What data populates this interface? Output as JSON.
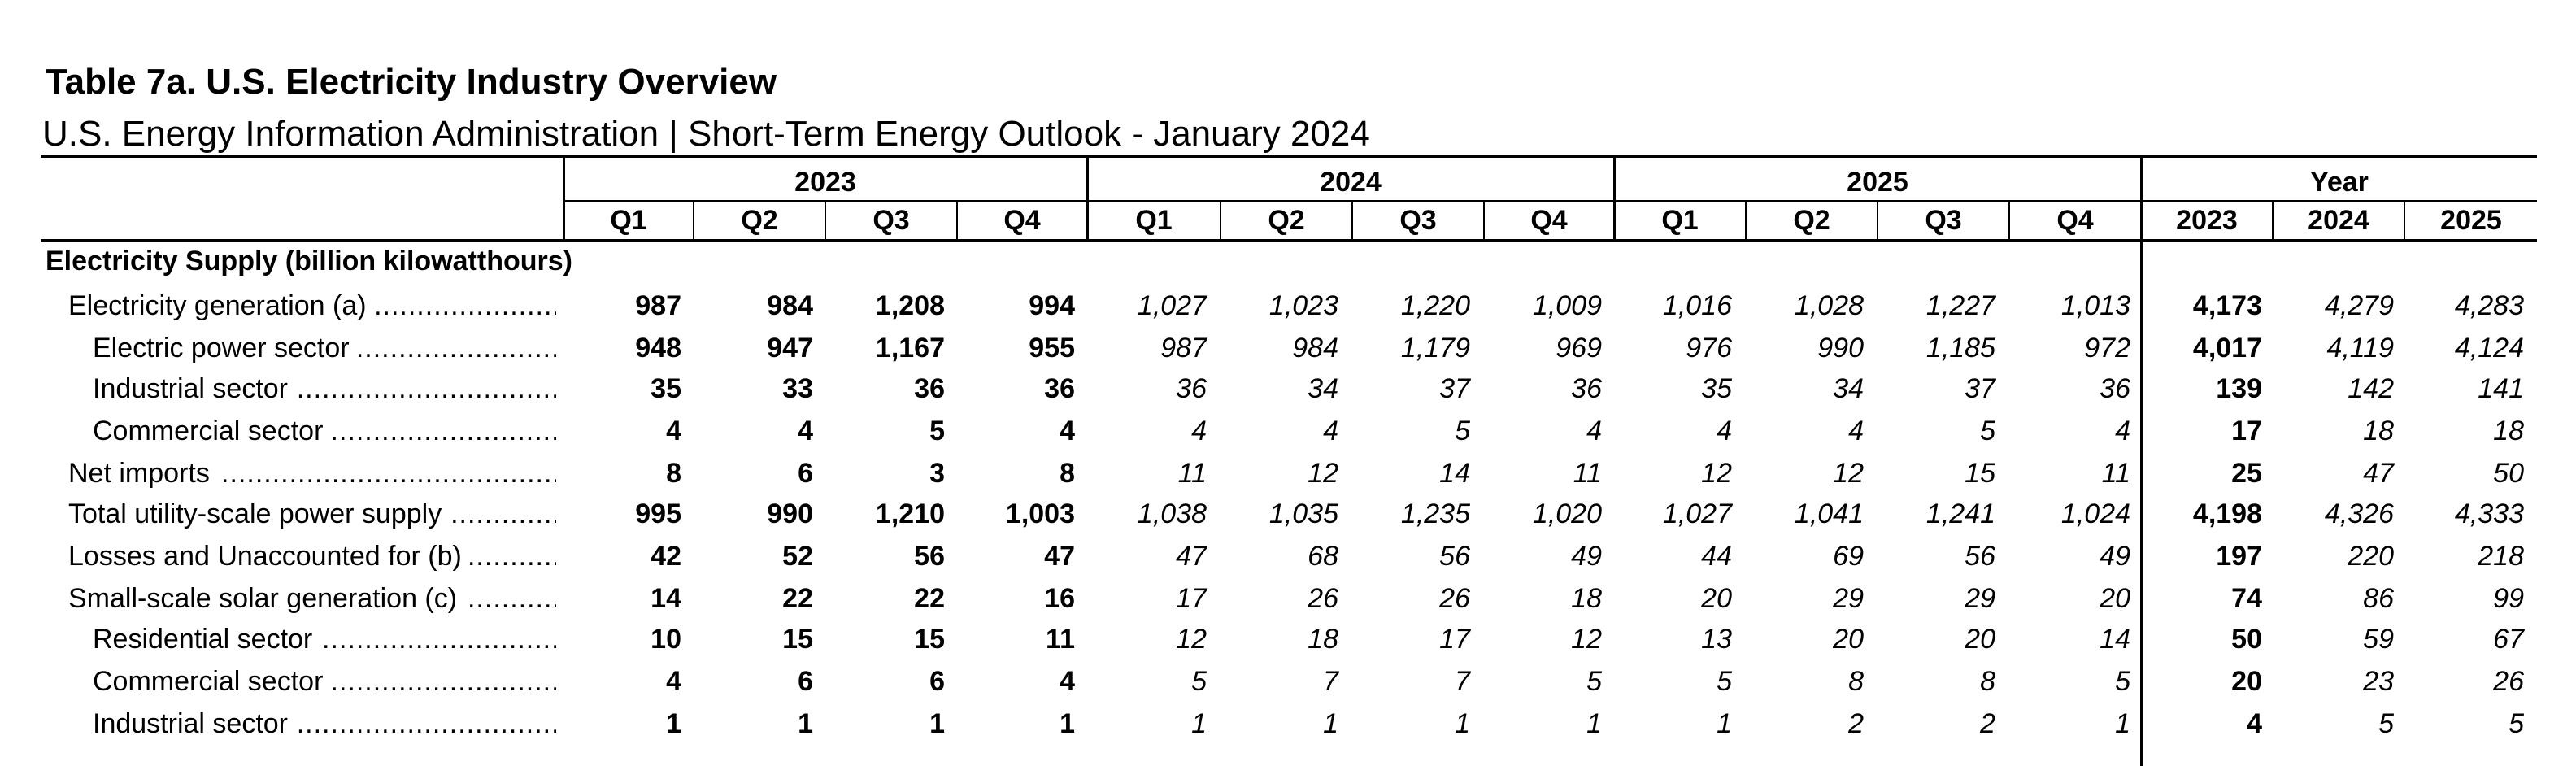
{
  "title": "Table 7a.  U.S. Electricity Industry Overview",
  "subtitle": "U.S. Energy Information Administration  |  Short-Term Energy Outlook - January 2024",
  "header": {
    "years": [
      "2023",
      "2024",
      "2025",
      "Year"
    ],
    "quarters": [
      "Q1",
      "Q2",
      "Q3",
      "Q4",
      "Q1",
      "Q2",
      "Q3",
      "Q4",
      "Q1",
      "Q2",
      "Q3",
      "Q4",
      "2023",
      "2024",
      "2025"
    ]
  },
  "section_title": "Electricity Supply (billion kilowatthours)",
  "rows": [
    {
      "label": "Electricity generation (a)",
      "values": [
        "987",
        "984",
        "1,208",
        "994",
        "1,027",
        "1,023",
        "1,220",
        "1,009",
        "1,016",
        "1,028",
        "1,227",
        "1,013",
        "4,173",
        "4,279",
        "4,283"
      ]
    },
    {
      "label": "Electric power sector",
      "values": [
        "948",
        "947",
        "1,167",
        "955",
        "987",
        "984",
        "1,179",
        "969",
        "976",
        "990",
        "1,185",
        "972",
        "4,017",
        "4,119",
        "4,124"
      ]
    },
    {
      "label": "Industrial sector",
      "values": [
        "35",
        "33",
        "36",
        "36",
        "36",
        "34",
        "37",
        "36",
        "35",
        "34",
        "37",
        "36",
        "139",
        "142",
        "141"
      ]
    },
    {
      "label": "Commercial sector",
      "values": [
        "4",
        "4",
        "5",
        "4",
        "4",
        "4",
        "5",
        "4",
        "4",
        "4",
        "5",
        "4",
        "17",
        "18",
        "18"
      ]
    },
    {
      "label": "Net imports",
      "values": [
        "8",
        "6",
        "3",
        "8",
        "11",
        "12",
        "14",
        "11",
        "12",
        "12",
        "15",
        "11",
        "25",
        "47",
        "50"
      ]
    },
    {
      "label": "Total utility-scale power supply",
      "values": [
        "995",
        "990",
        "1,210",
        "1,003",
        "1,038",
        "1,035",
        "1,235",
        "1,020",
        "1,027",
        "1,041",
        "1,241",
        "1,024",
        "4,198",
        "4,326",
        "4,333"
      ]
    },
    {
      "label": "Losses and Unaccounted for (b)",
      "values": [
        "42",
        "52",
        "56",
        "47",
        "47",
        "68",
        "56",
        "49",
        "44",
        "69",
        "56",
        "49",
        "197",
        "220",
        "218"
      ]
    },
    {
      "label": "Small-scale solar generation (c)",
      "values": [
        "14",
        "22",
        "22",
        "16",
        "17",
        "26",
        "26",
        "18",
        "20",
        "29",
        "29",
        "20",
        "74",
        "86",
        "99"
      ]
    },
    {
      "label": "Residential sector",
      "values": [
        "10",
        "15",
        "15",
        "11",
        "12",
        "18",
        "17",
        "12",
        "13",
        "20",
        "20",
        "14",
        "50",
        "59",
        "67"
      ]
    },
    {
      "label": "Commercial sector",
      "values": [
        "4",
        "6",
        "6",
        "4",
        "5",
        "7",
        "7",
        "5",
        "5",
        "8",
        "8",
        "5",
        "20",
        "23",
        "26"
      ]
    },
    {
      "label": "Industrial sector",
      "values": [
        "1",
        "1",
        "1",
        "1",
        "1",
        "1",
        "1",
        "1",
        "1",
        "2",
        "2",
        "1",
        "4",
        "5",
        "5"
      ]
    }
  ]
}
